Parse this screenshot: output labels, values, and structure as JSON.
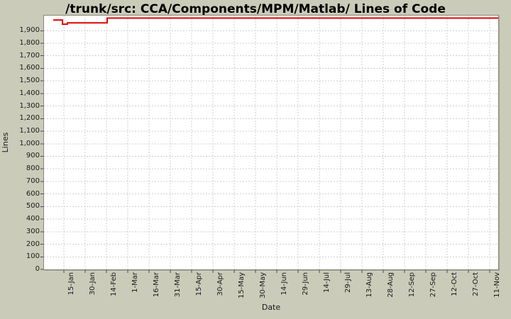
{
  "chart_data": {
    "type": "line",
    "title": "/trunk/src: CCA/Components/MPM/Matlab/ Lines of Code",
    "xlabel": "Date",
    "ylabel": "Lines",
    "grid": "dashed",
    "legend": "none",
    "page_bg": "#cbcbba",
    "plot_bg": "#ffffff",
    "x_tick_labels": [
      "15-Jan",
      "30-Jan",
      "14-Feb",
      "1-Mar",
      "16-Mar",
      "31-Mar",
      "15-Apr",
      "30-Apr",
      "15-May",
      "30-May",
      "14-Jun",
      "29-Jun",
      "14-Jul",
      "29-Jul",
      "13-Aug",
      "28-Aug",
      "12-Sep",
      "27-Sep",
      "12-Oct",
      "27-Oct",
      "11-Nov"
    ],
    "x_tick_interval_days": 15,
    "x_domain_days": [
      -14,
      306
    ],
    "y_ticks": [
      0,
      100,
      200,
      300,
      400,
      500,
      600,
      700,
      800,
      900,
      1000,
      1100,
      1200,
      1300,
      1400,
      1500,
      1600,
      1700,
      1800,
      1900
    ],
    "y_axis_max": 2020,
    "series": [
      {
        "name": "Lines of Code",
        "color": "#e00000",
        "step": true,
        "points": [
          {
            "date": "07-Jan",
            "day": -7.5,
            "value": 1985
          },
          {
            "date": "14-Jan",
            "day": -1,
            "value": 1952
          },
          {
            "date": "17-Jan",
            "day": 2.5,
            "value": 1962
          },
          {
            "date": "14-Feb",
            "day": 30.5,
            "value": 2000
          },
          {
            "date": "16-Nov",
            "day": 306,
            "value": 2000
          }
        ]
      }
    ]
  }
}
